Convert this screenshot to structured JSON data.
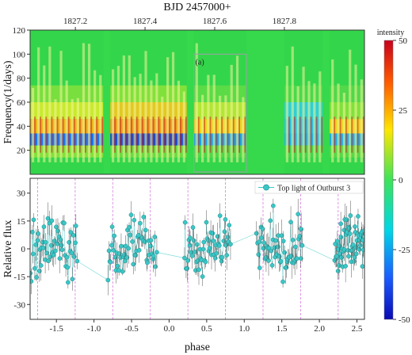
{
  "chart_data": [
    {
      "type": "heatmap",
      "title": "",
      "top_axis_label": "BJD 2457000+",
      "top_axis_ticks": [
        1827.2,
        1827.4,
        1827.6,
        1827.8
      ],
      "top_axis_range": [
        1827.07,
        1828.03
      ],
      "ylabel": "Frequency(1/days)",
      "ylim": [
        0,
        120
      ],
      "yticks": [
        20,
        40,
        60,
        80,
        100,
        120
      ],
      "colorbar": {
        "label": "intensity",
        "range": [
          -50,
          50
        ],
        "ticks": [
          50,
          25,
          0,
          -25,
          -50
        ]
      },
      "highlight_box": {
        "label": "(a)",
        "x_range": [
          1827.54,
          1827.69
        ],
        "y_range": [
          2,
          100
        ]
      },
      "hot_band_frequency": 38,
      "cold_band_frequency": 27,
      "observation_segments": [
        {
          "start": 1827.07,
          "end": 1827.28
        },
        {
          "start": 1827.3,
          "end": 1827.52
        },
        {
          "start": 1827.54,
          "end": 1827.69
        },
        {
          "start": 1827.8,
          "end": 1827.91
        },
        {
          "start": 1827.93,
          "end": 1828.03
        }
      ]
    },
    {
      "type": "scatter",
      "title": "",
      "xlabel": "phase",
      "ylabel": "Relative flux",
      "xlim": [
        -1.85,
        2.6
      ],
      "ylim": [
        -38,
        38
      ],
      "xticks": [
        -1.5,
        -1.0,
        -0.5,
        0.0,
        0.5,
        1.0,
        1.5,
        2.0,
        2.5
      ],
      "xtick_labels": [
        "-1.5",
        "-1.0",
        "-0.5",
        "0.0",
        "0.5",
        "1.0",
        "1.5",
        "2.0",
        "2.5"
      ],
      "yticks": [
        -30,
        -15,
        0,
        15,
        30
      ],
      "ytick_labels": [
        "-30",
        "-15",
        "0",
        "15",
        "30"
      ],
      "legend": {
        "label": "Top light of Outburst 3",
        "position": "top-right"
      },
      "vertical_markers": [
        -1.75,
        -1.25,
        -0.75,
        -0.25,
        0.25,
        0.75,
        1.25,
        1.75,
        2.25
      ],
      "segments": [
        {
          "start": -1.85,
          "end": -1.22
        },
        {
          "start": -0.82,
          "end": -0.16
        },
        {
          "start": 0.2,
          "end": 0.82
        },
        {
          "start": 1.16,
          "end": 1.78
        },
        {
          "start": 2.2,
          "end": 2.6
        }
      ],
      "series": [
        {
          "name": "Top light of Outburst 3",
          "color": "#3cc6c6",
          "points_per_segment": 55
        }
      ]
    }
  ]
}
